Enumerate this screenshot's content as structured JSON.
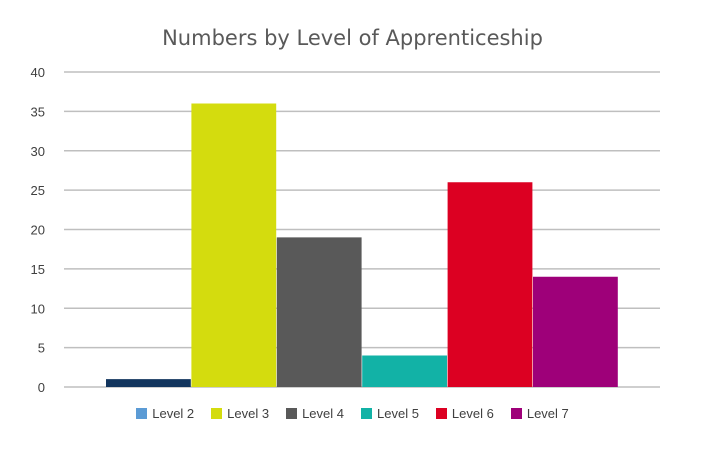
{
  "chart_data": {
    "type": "bar",
    "title": "Numbers by Level of Apprenticeship",
    "xlabel": "",
    "ylabel": "",
    "ylim": [
      0,
      40
    ],
    "yticks": [
      0,
      5,
      10,
      15,
      20,
      25,
      30,
      35,
      40
    ],
    "grid": true,
    "legend_position": "bottom",
    "categories": [
      "Level 2",
      "Level 3",
      "Level 4",
      "Level 5",
      "Level 6",
      "Level 7"
    ],
    "values": [
      1,
      36,
      19,
      4,
      26,
      14
    ],
    "bar_colors": [
      "#12355e",
      "#d4dc0e",
      "#595959",
      "#12b2a6",
      "#dc0022",
      "#9e0079"
    ],
    "legend": [
      {
        "label": "Level 2",
        "color": "#5b9bd5"
      },
      {
        "label": "Level 3",
        "color": "#d4dc0e"
      },
      {
        "label": "Level 4",
        "color": "#595959"
      },
      {
        "label": "Level 5",
        "color": "#12b2a6"
      },
      {
        "label": "Level 6",
        "color": "#dc0022"
      },
      {
        "label": "Level 7",
        "color": "#9e0079"
      }
    ]
  }
}
